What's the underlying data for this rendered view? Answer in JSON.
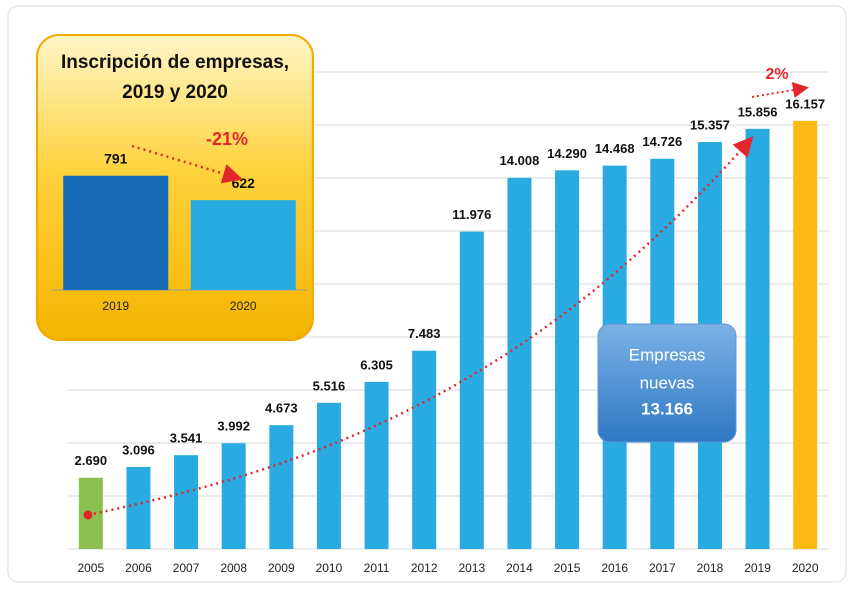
{
  "chart_data": [
    {
      "type": "bar",
      "categories": [
        "2005",
        "2006",
        "2007",
        "2008",
        "2009",
        "2010",
        "2011",
        "2012",
        "2013",
        "2014",
        "2015",
        "2016",
        "2017",
        "2018",
        "2019",
        "2020"
      ],
      "values": [
        2690,
        3096,
        3541,
        3992,
        4673,
        5516,
        6305,
        7483,
        11976,
        14008,
        14290,
        14468,
        14726,
        15357,
        15856,
        16157
      ],
      "value_labels": [
        "2.690",
        "3.096",
        "3.541",
        "3.992",
        "4.673",
        "5.516",
        "6.305",
        "7.483",
        "11.976",
        "14.008",
        "14.290",
        "14.468",
        "14.726",
        "15.357",
        "15.856",
        "16.157"
      ],
      "colors": [
        "#8cc152",
        "#29abe2",
        "#29abe2",
        "#29abe2",
        "#29abe2",
        "#29abe2",
        "#29abe2",
        "#29abe2",
        "#29abe2",
        "#29abe2",
        "#29abe2",
        "#29abe2",
        "#29abe2",
        "#29abe2",
        "#29abe2",
        "#fdb913"
      ],
      "ylim": [
        0,
        18000
      ],
      "yticks": [
        0,
        2000,
        4000,
        6000,
        8000,
        10000,
        12000,
        14000,
        16000,
        18000
      ],
      "grid": true,
      "annotations": [
        "2%"
      ],
      "callout": [
        "Empresas",
        "nuevas",
        "13.166"
      ]
    },
    {
      "type": "bar",
      "title": [
        "Inscripción de empresas,",
        "2019 y 2020"
      ],
      "categories": [
        "2019",
        "2020"
      ],
      "values": [
        791,
        622
      ],
      "colors": [
        "#1569b5",
        "#29abe2"
      ],
      "ylim": [
        0,
        900
      ],
      "annotations": [
        "-21%"
      ]
    }
  ]
}
